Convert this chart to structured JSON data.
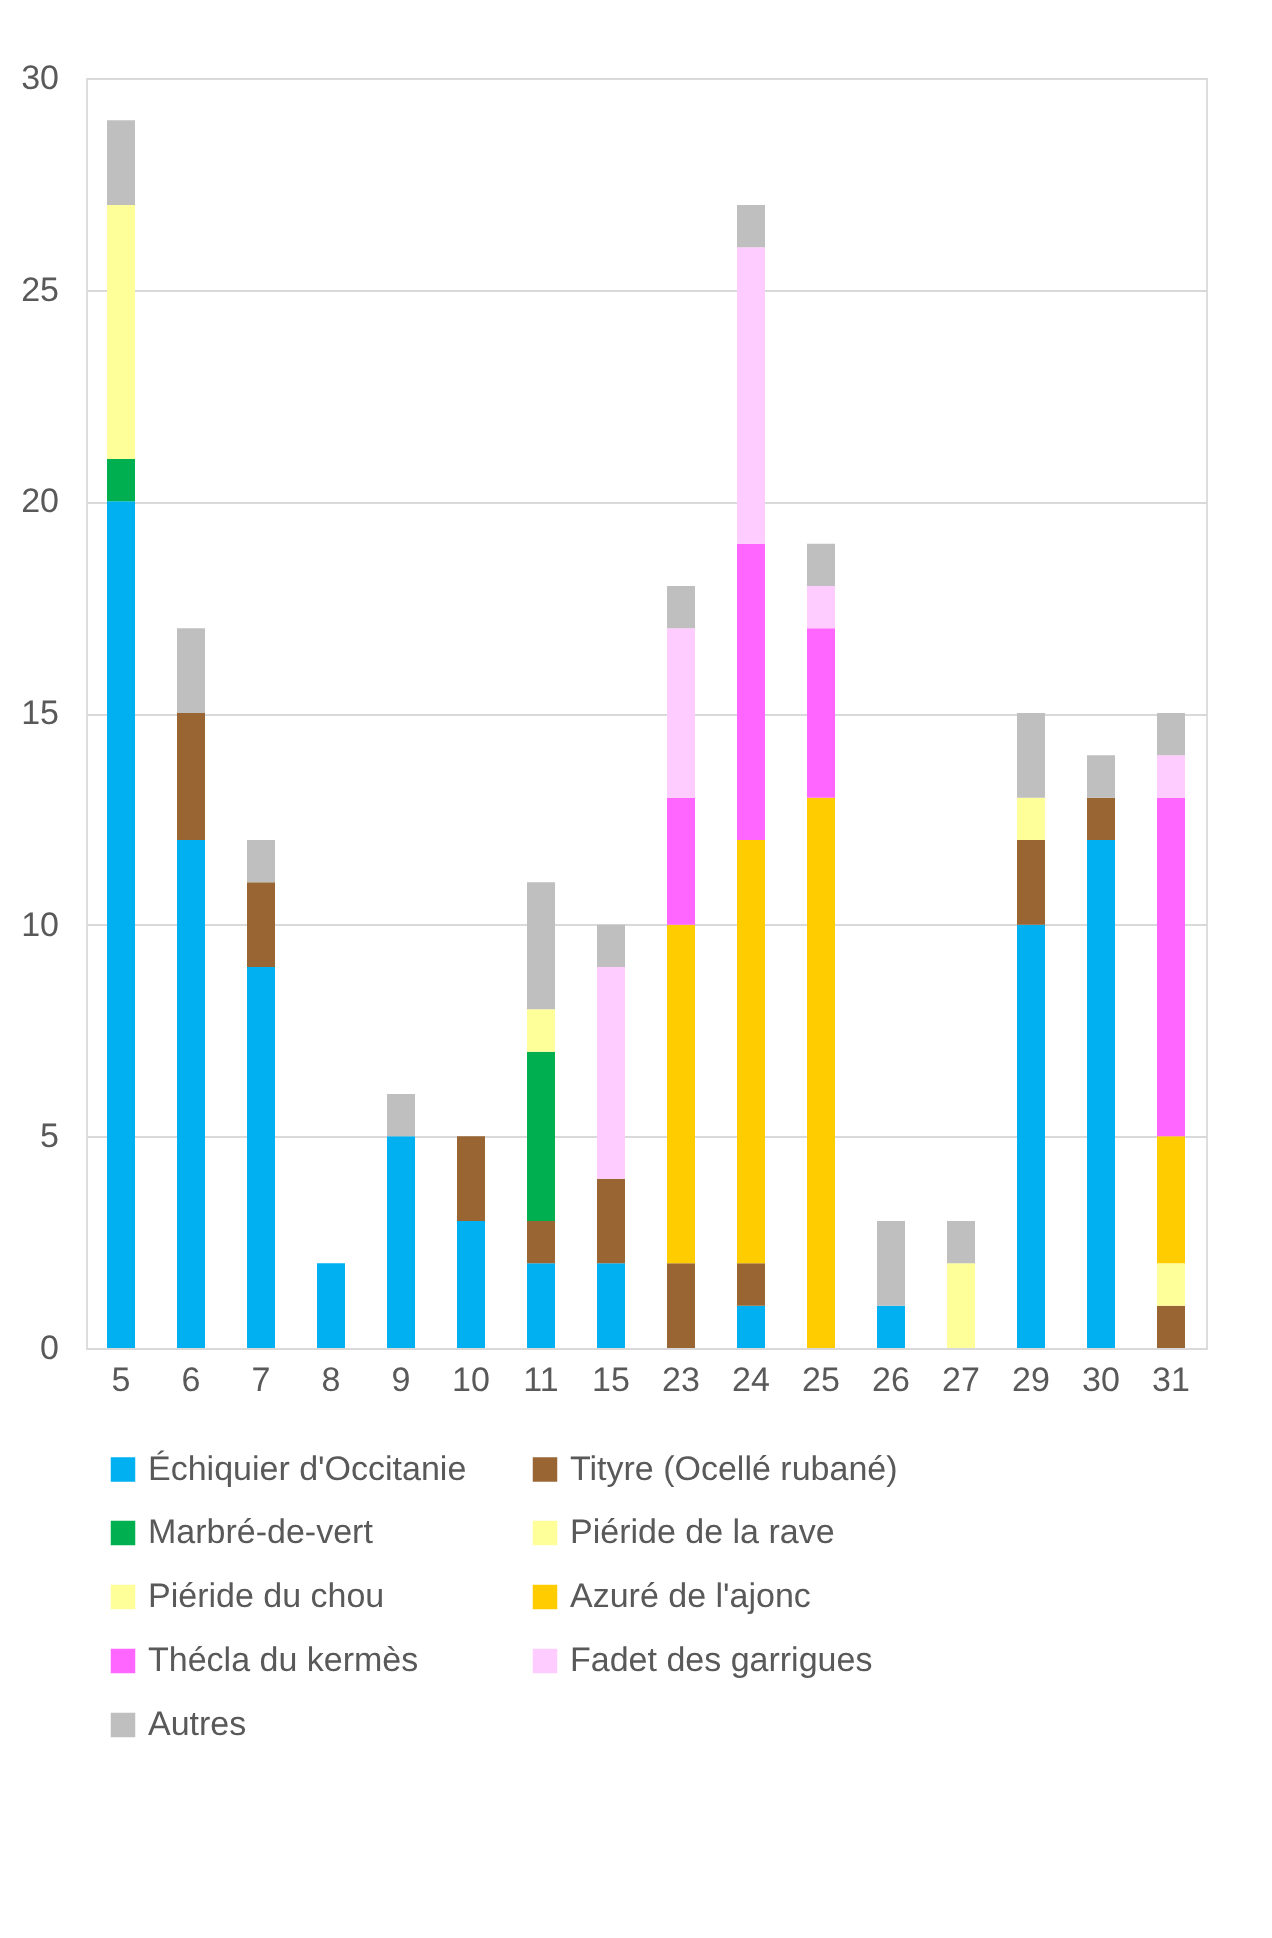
{
  "chart_data": {
    "type": "bar",
    "stacked": true,
    "categories": [
      "5",
      "6",
      "7",
      "8",
      "9",
      "10",
      "11",
      "15",
      "23",
      "24",
      "25",
      "26",
      "27",
      "29",
      "30",
      "31"
    ],
    "series": [
      {
        "name": "Échiquier d'Occitanie",
        "color": "#00b0f0",
        "values": [
          20,
          12,
          9,
          2,
          5,
          3,
          2,
          2,
          0,
          1,
          0,
          1,
          0,
          10,
          12,
          0
        ]
      },
      {
        "name": "Tityre (Ocellé rubané)",
        "color": "#996633",
        "values": [
          0,
          3,
          2,
          0,
          0,
          2,
          1,
          2,
          2,
          1,
          0,
          0,
          0,
          2,
          1,
          1
        ]
      },
      {
        "name": "Marbré-de-vert",
        "color": "#00b050",
        "values": [
          1,
          0,
          0,
          0,
          0,
          0,
          4,
          0,
          0,
          0,
          0,
          0,
          0,
          0,
          0,
          0
        ]
      },
      {
        "name": "Piéride de la rave",
        "color": "#ffff99",
        "values": [
          6,
          0,
          0,
          0,
          0,
          0,
          1,
          0,
          0,
          0,
          0,
          0,
          2,
          1,
          0,
          1
        ]
      },
      {
        "name": "Piéride du chou",
        "color": "#ffff99",
        "values": [
          0,
          0,
          0,
          0,
          0,
          0,
          0,
          0,
          0,
          0,
          0,
          0,
          0,
          0,
          0,
          0
        ]
      },
      {
        "name": "Azuré de l'ajonc",
        "color": "#ffcc00",
        "values": [
          0,
          0,
          0,
          0,
          0,
          0,
          0,
          0,
          8,
          10,
          13,
          0,
          0,
          0,
          0,
          3
        ]
      },
      {
        "name": "Thécla du kermès",
        "color": "#ff66ff",
        "values": [
          0,
          0,
          0,
          0,
          0,
          0,
          0,
          0,
          3,
          7,
          4,
          0,
          0,
          0,
          0,
          8
        ]
      },
      {
        "name": "Fadet des garrigues",
        "color": "#ffccff",
        "values": [
          0,
          0,
          0,
          0,
          0,
          0,
          0,
          5,
          4,
          7,
          1,
          0,
          0,
          0,
          0,
          1
        ]
      },
      {
        "name": "Autres",
        "color": "#bfbfbf",
        "values": [
          2,
          2,
          1,
          0,
          1,
          0,
          3,
          1,
          1,
          1,
          1,
          2,
          1,
          2,
          1,
          1
        ]
      }
    ],
    "ylim": [
      0,
      30
    ],
    "yticks": [
      0,
      5,
      10,
      15,
      20,
      25,
      30
    ],
    "grid": "y",
    "legend": "bottom"
  }
}
